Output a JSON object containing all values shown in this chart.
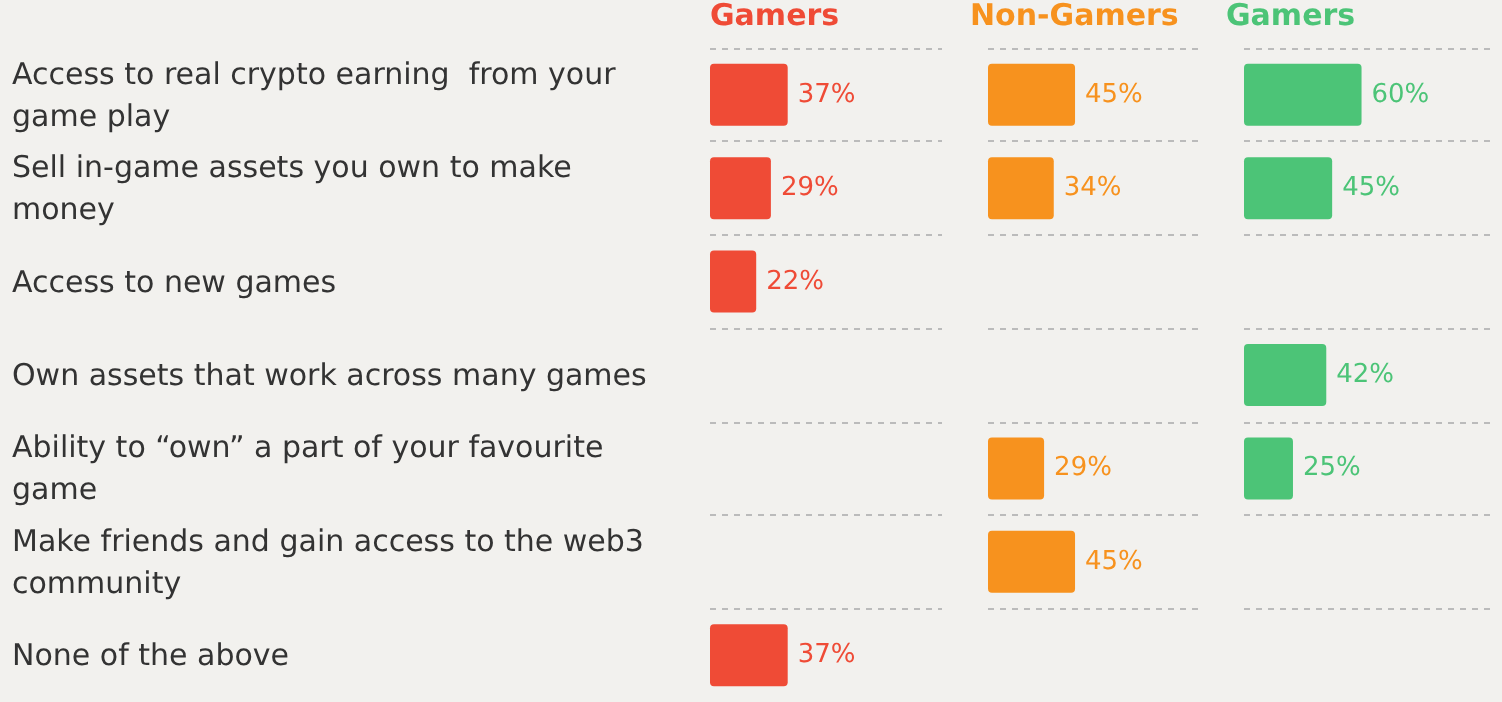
{
  "chart_data": [
    {
      "type": "bar",
      "orientation": "horizontal",
      "title": "Gamers",
      "grid": "y",
      "categories": [
        "Access to real crypto earning  from your game play",
        "Sell in-game assets you own to make money",
        "Access to new games",
        "Own assets that work across many games",
        "Ability to “own” a part of your favourite game",
        "Make friends and gain access to the web3 community",
        "None of the above"
      ],
      "values": [
        37,
        29,
        22,
        null,
        null,
        null,
        37
      ],
      "value_labels": [
        "37%",
        "29%",
        "22%",
        null,
        null,
        null,
        "37%"
      ],
      "color": "#ef4b36"
    },
    {
      "type": "bar",
      "orientation": "horizontal",
      "title": "Non-Gamers",
      "grid": "y",
      "categories": [
        null,
        null,
        null,
        null,
        null,
        null,
        null
      ],
      "values": [
        45,
        34,
        null,
        null,
        29,
        45,
        null
      ],
      "value_labels": [
        "45%",
        "34%",
        null,
        null,
        "29%",
        "45%",
        null
      ],
      "color": "#f7921e"
    },
    {
      "type": "bar",
      "orientation": "horizontal",
      "title": "Gamers",
      "grid": "y",
      "categories": [
        null,
        null,
        null,
        null,
        null,
        null,
        null
      ],
      "values": [
        60,
        45,
        null,
        42,
        25,
        null,
        null
      ],
      "value_labels": [
        "60%",
        "45%",
        null,
        "42%",
        "25%",
        null,
        null
      ],
      "color": "#4cc477"
    }
  ]
}
